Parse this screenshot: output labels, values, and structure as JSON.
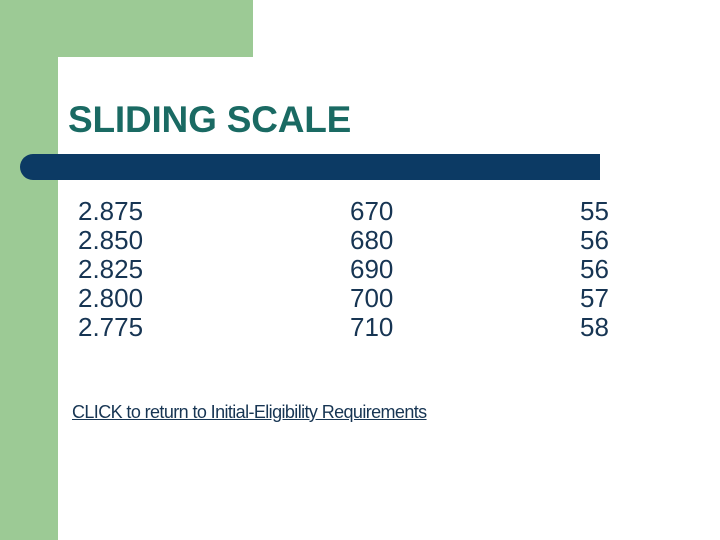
{
  "slide": {
    "title": "SLIDING SCALE"
  },
  "colors": {
    "green": "#9CCA95",
    "navy": "#0C3A64",
    "teal_title": "#1A6A63",
    "text_navy": "#173553",
    "panel_white": "#FFFFFF"
  },
  "table": {
    "columns": [
      {
        "values": [
          "2.875",
          "2.850",
          "2.825",
          "2.800",
          "2.775"
        ]
      },
      {
        "values": [
          "670",
          "680",
          "690",
          "700",
          "710"
        ]
      },
      {
        "values": [
          "55",
          "56",
          "56",
          "57",
          "58"
        ]
      }
    ]
  },
  "link": {
    "label": "CLICK to return to Initial-Eligibility Requirements"
  }
}
